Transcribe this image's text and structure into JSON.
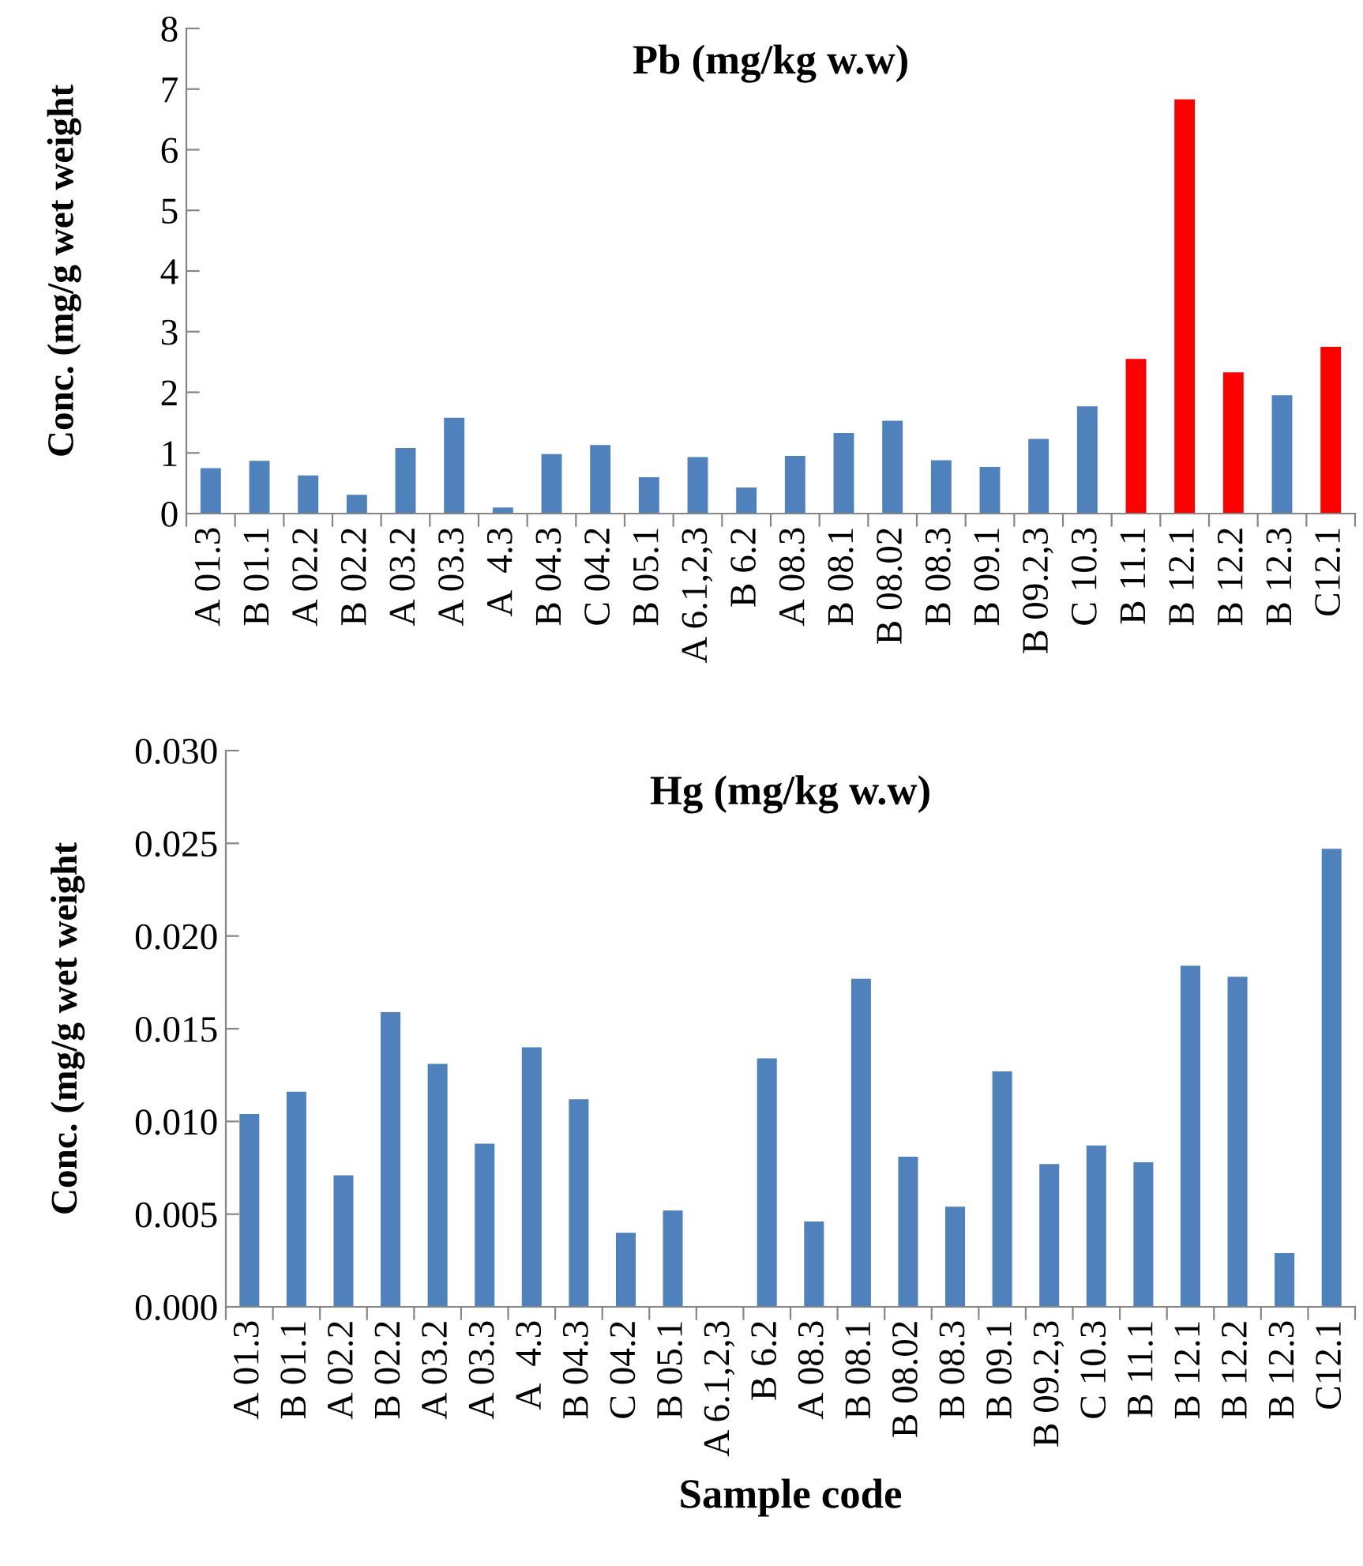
{
  "chart_data": [
    {
      "type": "bar",
      "title": "Pb (mg/kg w.w)",
      "ylabel": "Conc. (mg/g wet weight",
      "categories": [
        "A 01.3",
        "B 01.1",
        "A 02.2",
        "B 02.2",
        "A 03.2",
        "A 03.3",
        "A  4.3",
        "B 04.3",
        "C 04.2",
        "B 05.1",
        "A 6.1,2,3",
        "B 6.2",
        "A 08.3",
        "B 08.1",
        "B 08.02",
        "B 08.3",
        "B 09.1",
        "B 09.2,3",
        "C 10.3",
        "B 11.1",
        "B 12.1",
        "B 12.2",
        "B 12.3",
        "C12.1"
      ],
      "values": [
        0.75,
        0.87,
        0.63,
        0.31,
        1.08,
        1.58,
        0.1,
        0.98,
        1.13,
        0.6,
        0.93,
        0.43,
        0.95,
        1.33,
        1.53,
        0.88,
        0.77,
        1.23,
        1.77,
        2.55,
        6.83,
        2.33,
        1.95,
        2.75
      ],
      "colors": [
        "#4f81bd",
        "#4f81bd",
        "#4f81bd",
        "#4f81bd",
        "#4f81bd",
        "#4f81bd",
        "#4f81bd",
        "#4f81bd",
        "#4f81bd",
        "#4f81bd",
        "#4f81bd",
        "#4f81bd",
        "#4f81bd",
        "#4f81bd",
        "#4f81bd",
        "#4f81bd",
        "#4f81bd",
        "#4f81bd",
        "#4f81bd",
        "#ff0000",
        "#ff0000",
        "#ff0000",
        "#4f81bd",
        "#ff0000"
      ],
      "ylim": [
        0,
        8
      ],
      "yticks": [
        0,
        1,
        2,
        3,
        4,
        5,
        6,
        7,
        8
      ],
      "grid": false,
      "legend": false
    },
    {
      "type": "bar",
      "title": "Hg (mg/kg w.w)",
      "ylabel": "Conc. (mg/g wet weight",
      "xlabel": "Sample code",
      "categories": [
        "A 01.3",
        "B 01.1",
        "A 02.2",
        "B 02.2",
        "A 03.2",
        "A 03.3",
        "A  4.3",
        "B 04.3",
        "C 04.2",
        "B 05.1",
        "A 6.1,2,3",
        "B 6.2",
        "A 08.3",
        "B 08.1",
        "B 08.02",
        "B 08.3",
        "B 09.1",
        "B 09.2,3",
        "C 10.3",
        "B 11.1",
        "B 12.1",
        "B 12.2",
        "B 12.3",
        "C12.1"
      ],
      "values": [
        0.0104,
        0.0116,
        0.0071,
        0.0159,
        0.0131,
        0.0088,
        0.014,
        0.0112,
        0.004,
        0.0052,
        0.0,
        0.0134,
        0.0046,
        0.0177,
        0.0081,
        0.0054,
        0.0127,
        0.0077,
        0.0087,
        0.0078,
        0.0184,
        0.0178,
        0.0029,
        0.0247
      ],
      "colors": [
        "#4f81bd",
        "#4f81bd",
        "#4f81bd",
        "#4f81bd",
        "#4f81bd",
        "#4f81bd",
        "#4f81bd",
        "#4f81bd",
        "#4f81bd",
        "#4f81bd",
        "#4f81bd",
        "#4f81bd",
        "#4f81bd",
        "#4f81bd",
        "#4f81bd",
        "#4f81bd",
        "#4f81bd",
        "#4f81bd",
        "#4f81bd",
        "#4f81bd",
        "#4f81bd",
        "#4f81bd",
        "#4f81bd",
        "#4f81bd"
      ],
      "ylim": [
        0,
        0.03
      ],
      "yticks": [
        {
          "value": 0,
          "label": "0.000"
        },
        {
          "value": 0.005,
          "label": "0.005"
        },
        {
          "value": 0.01,
          "label": "0.010"
        },
        {
          "value": 0.015,
          "label": "0.015"
        },
        {
          "value": 0.02,
          "label": "0.020"
        },
        {
          "value": 0.025,
          "label": "0.025"
        },
        {
          "value": 0.03,
          "label": "0.030"
        }
      ],
      "grid": false,
      "legend": false
    }
  ]
}
